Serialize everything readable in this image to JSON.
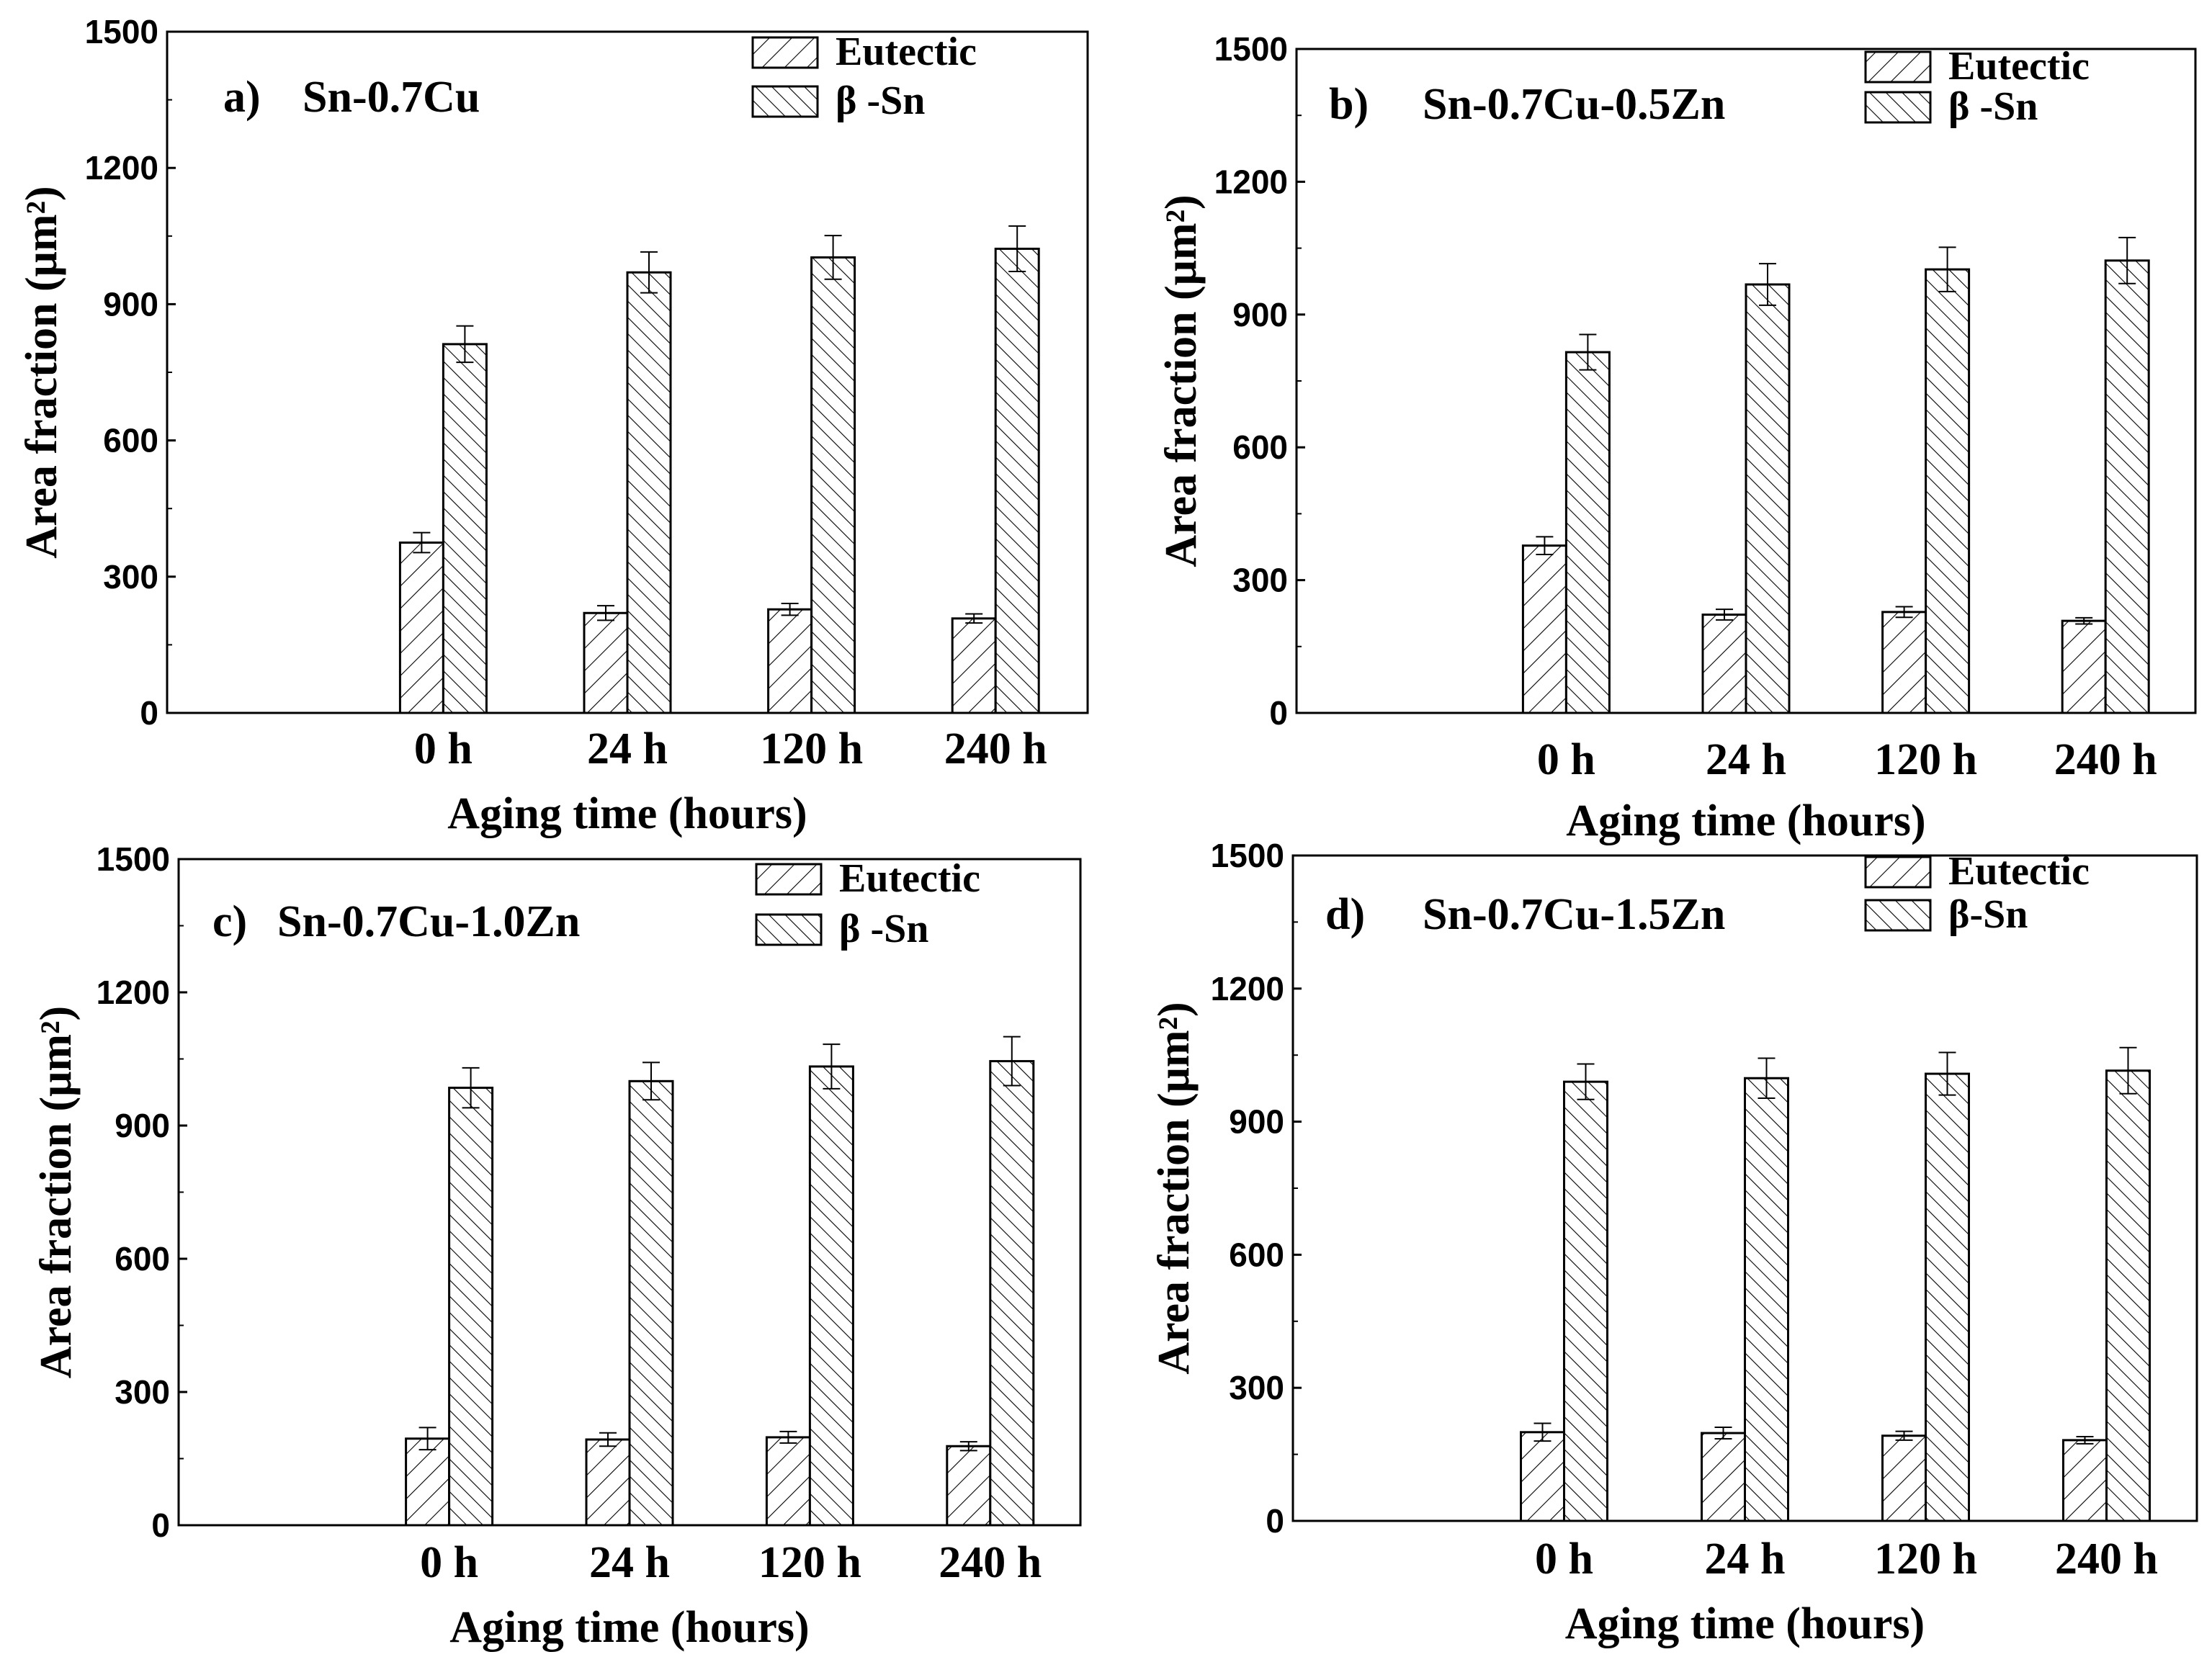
{
  "chart_data": [
    {
      "type": "bar",
      "panel_label": "a)",
      "title": "Sn-0.7Cu",
      "xlabel": "Aging time (hours)",
      "ylabel": "Area fraction (μm²)",
      "ylim": [
        0,
        1500
      ],
      "yticks": [
        "0",
        "300",
        "600",
        "900",
        "1200",
        "1500"
      ],
      "categories": [
        "0 h",
        "24 h",
        "120 h",
        "240 h"
      ],
      "series": [
        {
          "name": "Eutectic",
          "values": [
            375,
            220,
            228,
            208
          ],
          "errors": [
            22,
            16,
            13,
            10
          ]
        },
        {
          "name": "β -Sn",
          "values": [
            812,
            970,
            1003,
            1022
          ],
          "errors": [
            40,
            45,
            48,
            50
          ]
        }
      ],
      "legend": "top-right"
    },
    {
      "type": "bar",
      "panel_label": "b)",
      "title": "Sn-0.7Cu-0.5Zn",
      "xlabel": "Aging time (hours)",
      "ylabel": "Area fraction (μm²)",
      "ylim": [
        0,
        1500
      ],
      "yticks": [
        "0",
        "300",
        "600",
        "900",
        "1200",
        "1500"
      ],
      "categories": [
        "0 h",
        "24 h",
        "120 h",
        "240 h"
      ],
      "series": [
        {
          "name": "Eutectic",
          "values": [
            378,
            222,
            228,
            208
          ],
          "errors": [
            20,
            12,
            12,
            7
          ]
        },
        {
          "name": "β -Sn",
          "values": [
            815,
            968,
            1002,
            1022
          ],
          "errors": [
            40,
            47,
            50,
            52
          ]
        }
      ],
      "legend": "top-right"
    },
    {
      "type": "bar",
      "panel_label": "c)",
      "title": "Sn-0.7Cu-1.0Zn",
      "xlabel": "Aging time (hours)",
      "ylabel": "Area fraction (μm²)",
      "ylim": [
        0,
        1500
      ],
      "yticks": [
        "0",
        "300",
        "600",
        "900",
        "1200",
        "1500"
      ],
      "categories": [
        "0 h",
        "24 h",
        "120 h",
        "240 h"
      ],
      "series": [
        {
          "name": "Eutectic",
          "values": [
            195,
            193,
            198,
            178
          ],
          "errors": [
            25,
            15,
            13,
            10
          ]
        },
        {
          "name": "β -Sn",
          "values": [
            985,
            1000,
            1033,
            1045
          ],
          "errors": [
            45,
            42,
            50,
            55
          ]
        }
      ],
      "legend": "top-right"
    },
    {
      "type": "bar",
      "panel_label": "d)",
      "title": "Sn-0.7Cu-1.5Zn",
      "xlabel": "Aging time (hours)",
      "ylabel": "Area fraction (μm²)",
      "ylim": [
        0,
        1500
      ],
      "yticks": [
        "0",
        "300",
        "600",
        "900",
        "1200",
        "1500"
      ],
      "categories": [
        "0 h",
        "24 h",
        "120 h",
        "240 h"
      ],
      "series": [
        {
          "name": "Eutectic",
          "values": [
            200,
            198,
            192,
            182
          ],
          "errors": [
            20,
            13,
            10,
            8
          ]
        },
        {
          "name": "β-Sn",
          "values": [
            990,
            998,
            1008,
            1015
          ],
          "errors": [
            40,
            45,
            48,
            52
          ]
        }
      ],
      "legend": "top-right"
    }
  ]
}
